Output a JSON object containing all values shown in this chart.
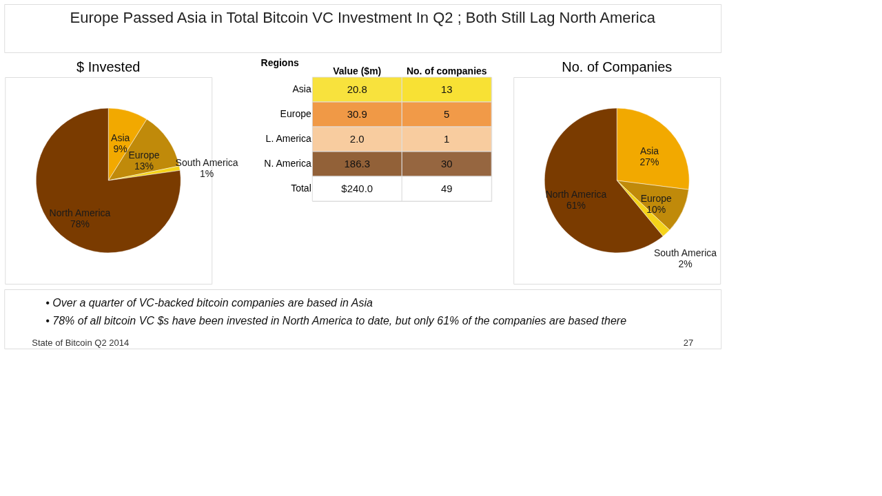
{
  "chart_data": [
    {
      "type": "other",
      "title": "Europe Passed Asia in Total Bitcoin VC Investment In Q2 ; Both Still Lag North America"
    },
    {
      "type": "pie",
      "title": "$ Invested",
      "categories": [
        "Asia",
        "Europe",
        "South America",
        "North America"
      ],
      "values": [
        9,
        13,
        1,
        78
      ],
      "value_labels": [
        "9%",
        "13%",
        "1%",
        "78%"
      ],
      "colors": [
        "#f2a900",
        "#c08a0a",
        "#f5d31a",
        "#7a3b00"
      ]
    },
    {
      "type": "heatmap",
      "ylabel": "Regions",
      "categories": [
        "Value ($m)",
        "No. of companies"
      ],
      "y_categories": [
        "Asia",
        "Europe",
        "L. America",
        "N. America",
        "Total"
      ],
      "cells": [
        [
          20.8,
          13
        ],
        [
          30.9,
          5
        ],
        [
          2.0,
          1
        ],
        [
          186.3,
          30
        ],
        [
          240.0,
          49
        ]
      ],
      "cell_labels": [
        [
          "20.8",
          "13"
        ],
        [
          "30.9",
          "5"
        ],
        [
          "2.0",
          "1"
        ],
        [
          "186.3",
          "30"
        ],
        [
          "$240.0",
          "49"
        ]
      ],
      "colors": [
        "#f7dc12",
        "#ee8420",
        "#f7c088",
        "#8e5a30",
        "#ffffff"
      ]
    },
    {
      "type": "pie",
      "title": "No. of Companies",
      "categories": [
        "Asia",
        "Europe",
        "South America",
        "North America"
      ],
      "values": [
        27,
        10,
        2,
        61
      ],
      "value_labels": [
        "27%",
        "10%",
        "2%",
        "61%"
      ],
      "colors": [
        "#f2a900",
        "#c08a0a",
        "#f5d31a",
        "#7a3b00"
      ]
    },
    {
      "type": "other",
      "annotations": [
        "• Over a quarter of VC-backed bitcoin companies are based in Asia",
        "• 78% of all bitcoin VC $s have been invested in North America to date, but only 61% of the companies are based there",
        "State of Bitcoin Q2 2014",
        "27"
      ]
    }
  ]
}
